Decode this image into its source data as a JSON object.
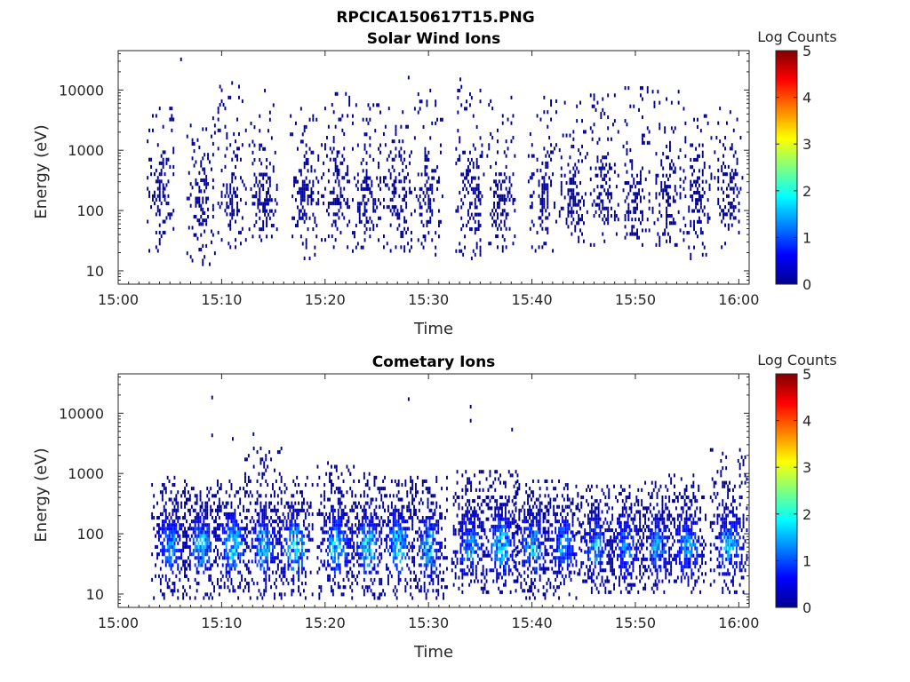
{
  "figure_title": "RPCICA150617T15.PNG",
  "colors": {
    "background": "#ffffff",
    "axis": "#262626",
    "low_density": "#00008f",
    "colormap": [
      "#00008f",
      "#0000ff",
      "#0080ff",
      "#00ffff",
      "#80ff80",
      "#ffff00",
      "#ff8000",
      "#ff0000",
      "#800000"
    ]
  },
  "chart_data": [
    {
      "type": "heatmap",
      "title": "Solar Wind Ions",
      "xlabel": "Time",
      "ylabel": "Energy (eV)",
      "yscale": "log",
      "xlim": [
        "15:00",
        "16:01"
      ],
      "ylim": [
        6,
        45000
      ],
      "x_ticks": [
        "15:00",
        "15:10",
        "15:20",
        "15:30",
        "15:40",
        "15:50",
        "16:00"
      ],
      "y_ticks": [
        "10",
        "100",
        "1000",
        "10000"
      ],
      "colorbar": {
        "label": "Log Counts",
        "range": [
          0,
          5
        ],
        "ticks": [
          "0",
          "1",
          "2",
          "3",
          "4",
          "5"
        ]
      },
      "grid": false,
      "data_start": "15:03",
      "bursts": [
        {
          "time": "15:04",
          "emin": 20,
          "emax": 6000,
          "peak": 0.1
        },
        {
          "time": "15:08",
          "emin": 12,
          "emax": 4000,
          "peak": 0.1
        },
        {
          "time": "15:11",
          "emin": 20,
          "emax": 13000,
          "peak": 0.1
        },
        {
          "time": "15:14",
          "emin": 30,
          "emax": 12000,
          "peak": 0.1
        },
        {
          "time": "15:18",
          "emin": 15,
          "emax": 6000,
          "peak": 0.1
        },
        {
          "time": "15:21",
          "emin": 20,
          "emax": 10000,
          "peak": 0.1
        },
        {
          "time": "15:24",
          "emin": 15,
          "emax": 6000,
          "peak": 0.1
        },
        {
          "time": "15:27",
          "emin": 20,
          "emax": 5000,
          "peak": 0.1
        },
        {
          "time": "15:30",
          "emin": 15,
          "emax": 10000,
          "peak": 0.1
        },
        {
          "time": "15:34",
          "emin": 15,
          "emax": 12000,
          "peak": 0.1
        },
        {
          "time": "15:37",
          "emin": 20,
          "emax": 8000,
          "peak": 0.1
        },
        {
          "time": "15:41",
          "emin": 20,
          "emax": 8000,
          "peak": 0.1
        },
        {
          "time": "15:44",
          "emin": 25,
          "emax": 6000,
          "peak": 0.1
        },
        {
          "time": "15:47",
          "emin": 25,
          "emax": 10000,
          "peak": 0.1
        },
        {
          "time": "15:50",
          "emin": 25,
          "emax": 11000,
          "peak": 0.1
        },
        {
          "time": "15:53",
          "emin": 25,
          "emax": 10000,
          "peak": 0.1
        },
        {
          "time": "15:56",
          "emin": 15,
          "emax": 6000,
          "peak": 0.1
        },
        {
          "time": "15:59",
          "emin": 20,
          "emax": 8000,
          "peak": 0.1
        }
      ],
      "isolated_points": [
        {
          "time": "15:06",
          "energy": 30000
        },
        {
          "time": "15:28",
          "energy": 15000
        },
        {
          "time": "15:33",
          "energy": 14000
        }
      ]
    },
    {
      "type": "heatmap",
      "title": "Cometary Ions",
      "xlabel": "Time",
      "ylabel": "Energy (eV)",
      "yscale": "log",
      "xlim": [
        "15:00",
        "16:01"
      ],
      "ylim": [
        6,
        45000
      ],
      "x_ticks": [
        "15:00",
        "15:10",
        "15:20",
        "15:30",
        "15:40",
        "15:50",
        "16:00"
      ],
      "y_ticks": [
        "10",
        "100",
        "1000",
        "10000"
      ],
      "colorbar": {
        "label": "Log Counts",
        "range": [
          0,
          5
        ],
        "ticks": [
          "0",
          "1",
          "2",
          "3",
          "4",
          "5"
        ]
      },
      "grid": false,
      "data_start": "15:03",
      "bursts": [
        {
          "time": "15:05",
          "emin": 8,
          "emax": 800,
          "peak": 1.6
        },
        {
          "time": "15:08",
          "emin": 8,
          "emax": 600,
          "peak": 1.8
        },
        {
          "time": "15:11",
          "emin": 8,
          "emax": 700,
          "peak": 2.0
        },
        {
          "time": "15:14",
          "emin": 8,
          "emax": 2500,
          "peak": 1.9
        },
        {
          "time": "15:17",
          "emin": 8,
          "emax": 900,
          "peak": 2.1
        },
        {
          "time": "15:21",
          "emin": 8,
          "emax": 1500,
          "peak": 2.0
        },
        {
          "time": "15:24",
          "emin": 8,
          "emax": 1000,
          "peak": 2.1
        },
        {
          "time": "15:27",
          "emin": 8,
          "emax": 700,
          "peak": 2.0
        },
        {
          "time": "15:30",
          "emin": 8,
          "emax": 800,
          "peak": 1.9
        },
        {
          "time": "15:34",
          "emin": 10,
          "emax": 1000,
          "peak": 1.6
        },
        {
          "time": "15:37",
          "emin": 10,
          "emax": 1000,
          "peak": 2.0
        },
        {
          "time": "15:40",
          "emin": 8,
          "emax": 700,
          "peak": 1.7
        },
        {
          "time": "15:43",
          "emin": 8,
          "emax": 700,
          "peak": 1.6
        },
        {
          "time": "15:46",
          "emin": 10,
          "emax": 600,
          "peak": 1.6
        },
        {
          "time": "15:49",
          "emin": 10,
          "emax": 600,
          "peak": 1.4
        },
        {
          "time": "15:52",
          "emin": 10,
          "emax": 700,
          "peak": 1.5
        },
        {
          "time": "15:55",
          "emin": 10,
          "emax": 900,
          "peak": 1.6
        },
        {
          "time": "15:59",
          "emin": 10,
          "emax": 2500,
          "peak": 1.9
        }
      ],
      "isolated_points": [
        {
          "time": "15:09",
          "energy": 17000
        },
        {
          "time": "15:09",
          "energy": 4000
        },
        {
          "time": "15:11",
          "energy": 3500
        },
        {
          "time": "15:13",
          "energy": 4200
        },
        {
          "time": "15:28",
          "energy": 16000
        },
        {
          "time": "15:34",
          "energy": 12000
        },
        {
          "time": "15:34",
          "energy": 7000
        },
        {
          "time": "15:38",
          "energy": 5000
        }
      ]
    }
  ]
}
